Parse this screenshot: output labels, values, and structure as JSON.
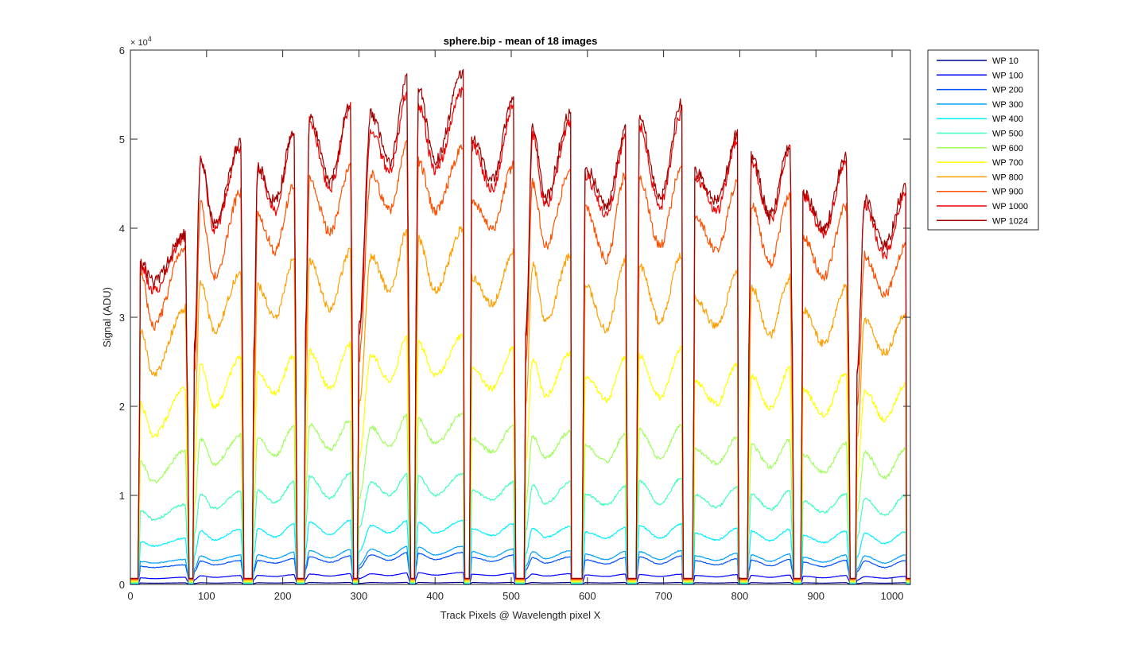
{
  "chart_data": {
    "type": "line",
    "title": "sphere.bip - mean of 18 images",
    "xlabel": "Track Pixels @ Wavelength pixel X",
    "ylabel": "Signal (ADU)",
    "xlim": [
      0,
      1024
    ],
    "ylim": [
      0,
      60000
    ],
    "x_ticks": [
      0,
      100,
      200,
      300,
      400,
      500,
      600,
      700,
      800,
      900,
      1000
    ],
    "y_ticks": [
      0,
      1,
      2,
      3,
      4,
      5,
      6
    ],
    "y_multiplier": "× 10",
    "y_exponent": "4",
    "grid": false,
    "legend_position": "outside-top-right",
    "segments": [
      {
        "start": 10,
        "end": 76,
        "peak_left": 13,
        "peak_right": 72,
        "dip_at": 30
      },
      {
        "start": 82,
        "end": 148,
        "peak_left": 92,
        "peak_right": 145,
        "dip_at": 110
      },
      {
        "start": 160,
        "end": 218,
        "peak_left": 167,
        "peak_right": 215,
        "dip_at": 190
      },
      {
        "start": 228,
        "end": 292,
        "peak_left": 235,
        "peak_right": 289,
        "dip_at": 262
      },
      {
        "start": 298,
        "end": 362,
        "peak_left": 316,
        "peak_right": 365,
        "dip_at": 340
      },
      {
        "start": 373,
        "end": 438,
        "peak_left": 378,
        "peak_right": 437,
        "dip_at": 400
      },
      {
        "start": 445,
        "end": 505,
        "peak_left": 448,
        "peak_right": 503,
        "dip_at": 475
      },
      {
        "start": 517,
        "end": 578,
        "peak_left": 528,
        "peak_right": 578,
        "dip_at": 545
      },
      {
        "start": 593,
        "end": 652,
        "peak_left": 597,
        "peak_right": 650,
        "dip_at": 625
      },
      {
        "start": 664,
        "end": 725,
        "peak_left": 668,
        "peak_right": 724,
        "dip_at": 695
      },
      {
        "start": 738,
        "end": 798,
        "peak_left": 740,
        "peak_right": 797,
        "dip_at": 770
      },
      {
        "start": 810,
        "end": 870,
        "peak_left": 815,
        "peak_right": 866,
        "dip_at": 840
      },
      {
        "start": 880,
        "end": 944,
        "peak_left": 883,
        "peak_right": 940,
        "dip_at": 910
      },
      {
        "start": 952,
        "end": 1018,
        "peak_left": 964,
        "peak_right": 1018,
        "dip_at": 990
      }
    ],
    "series": [
      {
        "name": "WP 10",
        "color": "#00008f",
        "peaks": [
          180,
          200,
          210,
          220,
          230,
          230,
          230,
          220,
          220,
          220,
          210,
          210,
          200,
          190
        ],
        "dips": [
          140,
          150,
          160,
          170,
          175,
          175,
          170,
          165,
          165,
          165,
          160,
          155,
          150,
          140
        ]
      },
      {
        "name": "WP 100",
        "color": "#0000ff",
        "peaks": [
          800,
          1000,
          1100,
          1200,
          1300,
          1350,
          1250,
          1200,
          1150,
          1150,
          1100,
          1050,
          1000,
          900
        ],
        "dips": [
          650,
          800,
          900,
          950,
          1000,
          1050,
          1000,
          950,
          900,
          900,
          850,
          800,
          750,
          700
        ]
      },
      {
        "name": "WP 200",
        "color": "#0050ff",
        "peaks": [
          2200,
          2700,
          2900,
          3200,
          3600,
          3600,
          3300,
          3100,
          3000,
          3200,
          2900,
          2800,
          2700,
          2700
        ],
        "dips": [
          1900,
          2200,
          2400,
          2500,
          2700,
          2800,
          2600,
          2400,
          2300,
          2300,
          2200,
          2100,
          2000,
          1900
        ]
      },
      {
        "name": "WP 300",
        "color": "#00a0ff",
        "peaks": [
          2800,
          3300,
          3600,
          3900,
          4300,
          4300,
          4000,
          3800,
          3700,
          3800,
          3500,
          3400,
          3300,
          3300
        ],
        "dips": [
          2400,
          2700,
          2900,
          3000,
          3200,
          3300,
          3100,
          2900,
          2800,
          2800,
          2700,
          2600,
          2500,
          2400
        ]
      },
      {
        "name": "WP 400",
        "color": "#00f0ff",
        "peaks": [
          5200,
          6200,
          6800,
          7200,
          7200,
          7200,
          6800,
          6500,
          6400,
          6800,
          6300,
          6200,
          6000,
          5900
        ],
        "dips": [
          4300,
          5000,
          5300,
          5600,
          5800,
          5800,
          5500,
          5300,
          5200,
          5200,
          5000,
          4900,
          4700,
          4600
        ]
      },
      {
        "name": "WP 500",
        "color": "#40ffbf",
        "peaks": [
          9000,
          10500,
          11500,
          12500,
          12500,
          12500,
          11500,
          11500,
          11000,
          12000,
          11000,
          10500,
          10200,
          10000
        ],
        "dips": [
          7300,
          8500,
          9200,
          9700,
          10000,
          10000,
          9500,
          9100,
          8900,
          9000,
          8700,
          8400,
          8100,
          7800
        ]
      },
      {
        "name": "WP 600",
        "color": "#a0ff5f",
        "peaks": [
          15000,
          16800,
          17800,
          18500,
          19200,
          19200,
          17800,
          17200,
          16900,
          17900,
          16500,
          16200,
          15800,
          15300
        ],
        "dips": [
          11500,
          13500,
          14500,
          15200,
          15500,
          15800,
          14900,
          14200,
          13800,
          14100,
          13600,
          13200,
          12600,
          12000
        ]
      },
      {
        "name": "WP 700",
        "color": "#ffff00",
        "peaks": [
          22000,
          25500,
          25800,
          27000,
          28000,
          28000,
          26500,
          26000,
          25500,
          26500,
          24800,
          24200,
          23800,
          22500
        ],
        "dips": [
          16700,
          20000,
          21500,
          22000,
          23000,
          23500,
          22000,
          21200,
          20700,
          21000,
          20300,
          19800,
          19000,
          18500
        ]
      },
      {
        "name": "WP 800",
        "color": "#ffa000",
        "peaks": [
          31000,
          35000,
          36500,
          37500,
          40000,
          40000,
          37500,
          37000,
          36500,
          37000,
          35000,
          34500,
          33500,
          30500
        ],
        "dips": [
          23500,
          28500,
          30000,
          31000,
          33000,
          33000,
          31500,
          29500,
          28500,
          29500,
          29000,
          28000,
          27000,
          26000
        ]
      },
      {
        "name": "WP 900",
        "color": "#ff5000",
        "peaks": [
          38000,
          44000,
          45000,
          47000,
          50000,
          49000,
          47000,
          46500,
          46000,
          47000,
          45000,
          44000,
          42500,
          38000
        ],
        "dips": [
          29000,
          34500,
          37500,
          39500,
          42000,
          42000,
          40000,
          38000,
          36500,
          38000,
          37500,
          36000,
          34500,
          32500
        ]
      },
      {
        "name": "WP 1000",
        "color": "#f00000",
        "peaks": [
          39000,
          49000,
          50500,
          53500,
          55500,
          55500,
          53500,
          52000,
          50000,
          53000,
          50000,
          49000,
          47500,
          44000
        ],
        "dips": [
          33000,
          40000,
          42000,
          44500,
          46500,
          46500,
          44500,
          42500,
          41500,
          42500,
          42000,
          41000,
          39500,
          37000
        ]
      },
      {
        "name": "WP 1024",
        "color": "#a00000",
        "peaks": [
          39300,
          49600,
          51000,
          54000,
          57500,
          57500,
          54500,
          53000,
          51000,
          54000,
          50500,
          49500,
          48000,
          44500
        ],
        "dips": [
          34000,
          40500,
          43000,
          45500,
          47500,
          47500,
          45500,
          43500,
          42500,
          43500,
          43000,
          41500,
          40000,
          38000
        ]
      }
    ]
  }
}
